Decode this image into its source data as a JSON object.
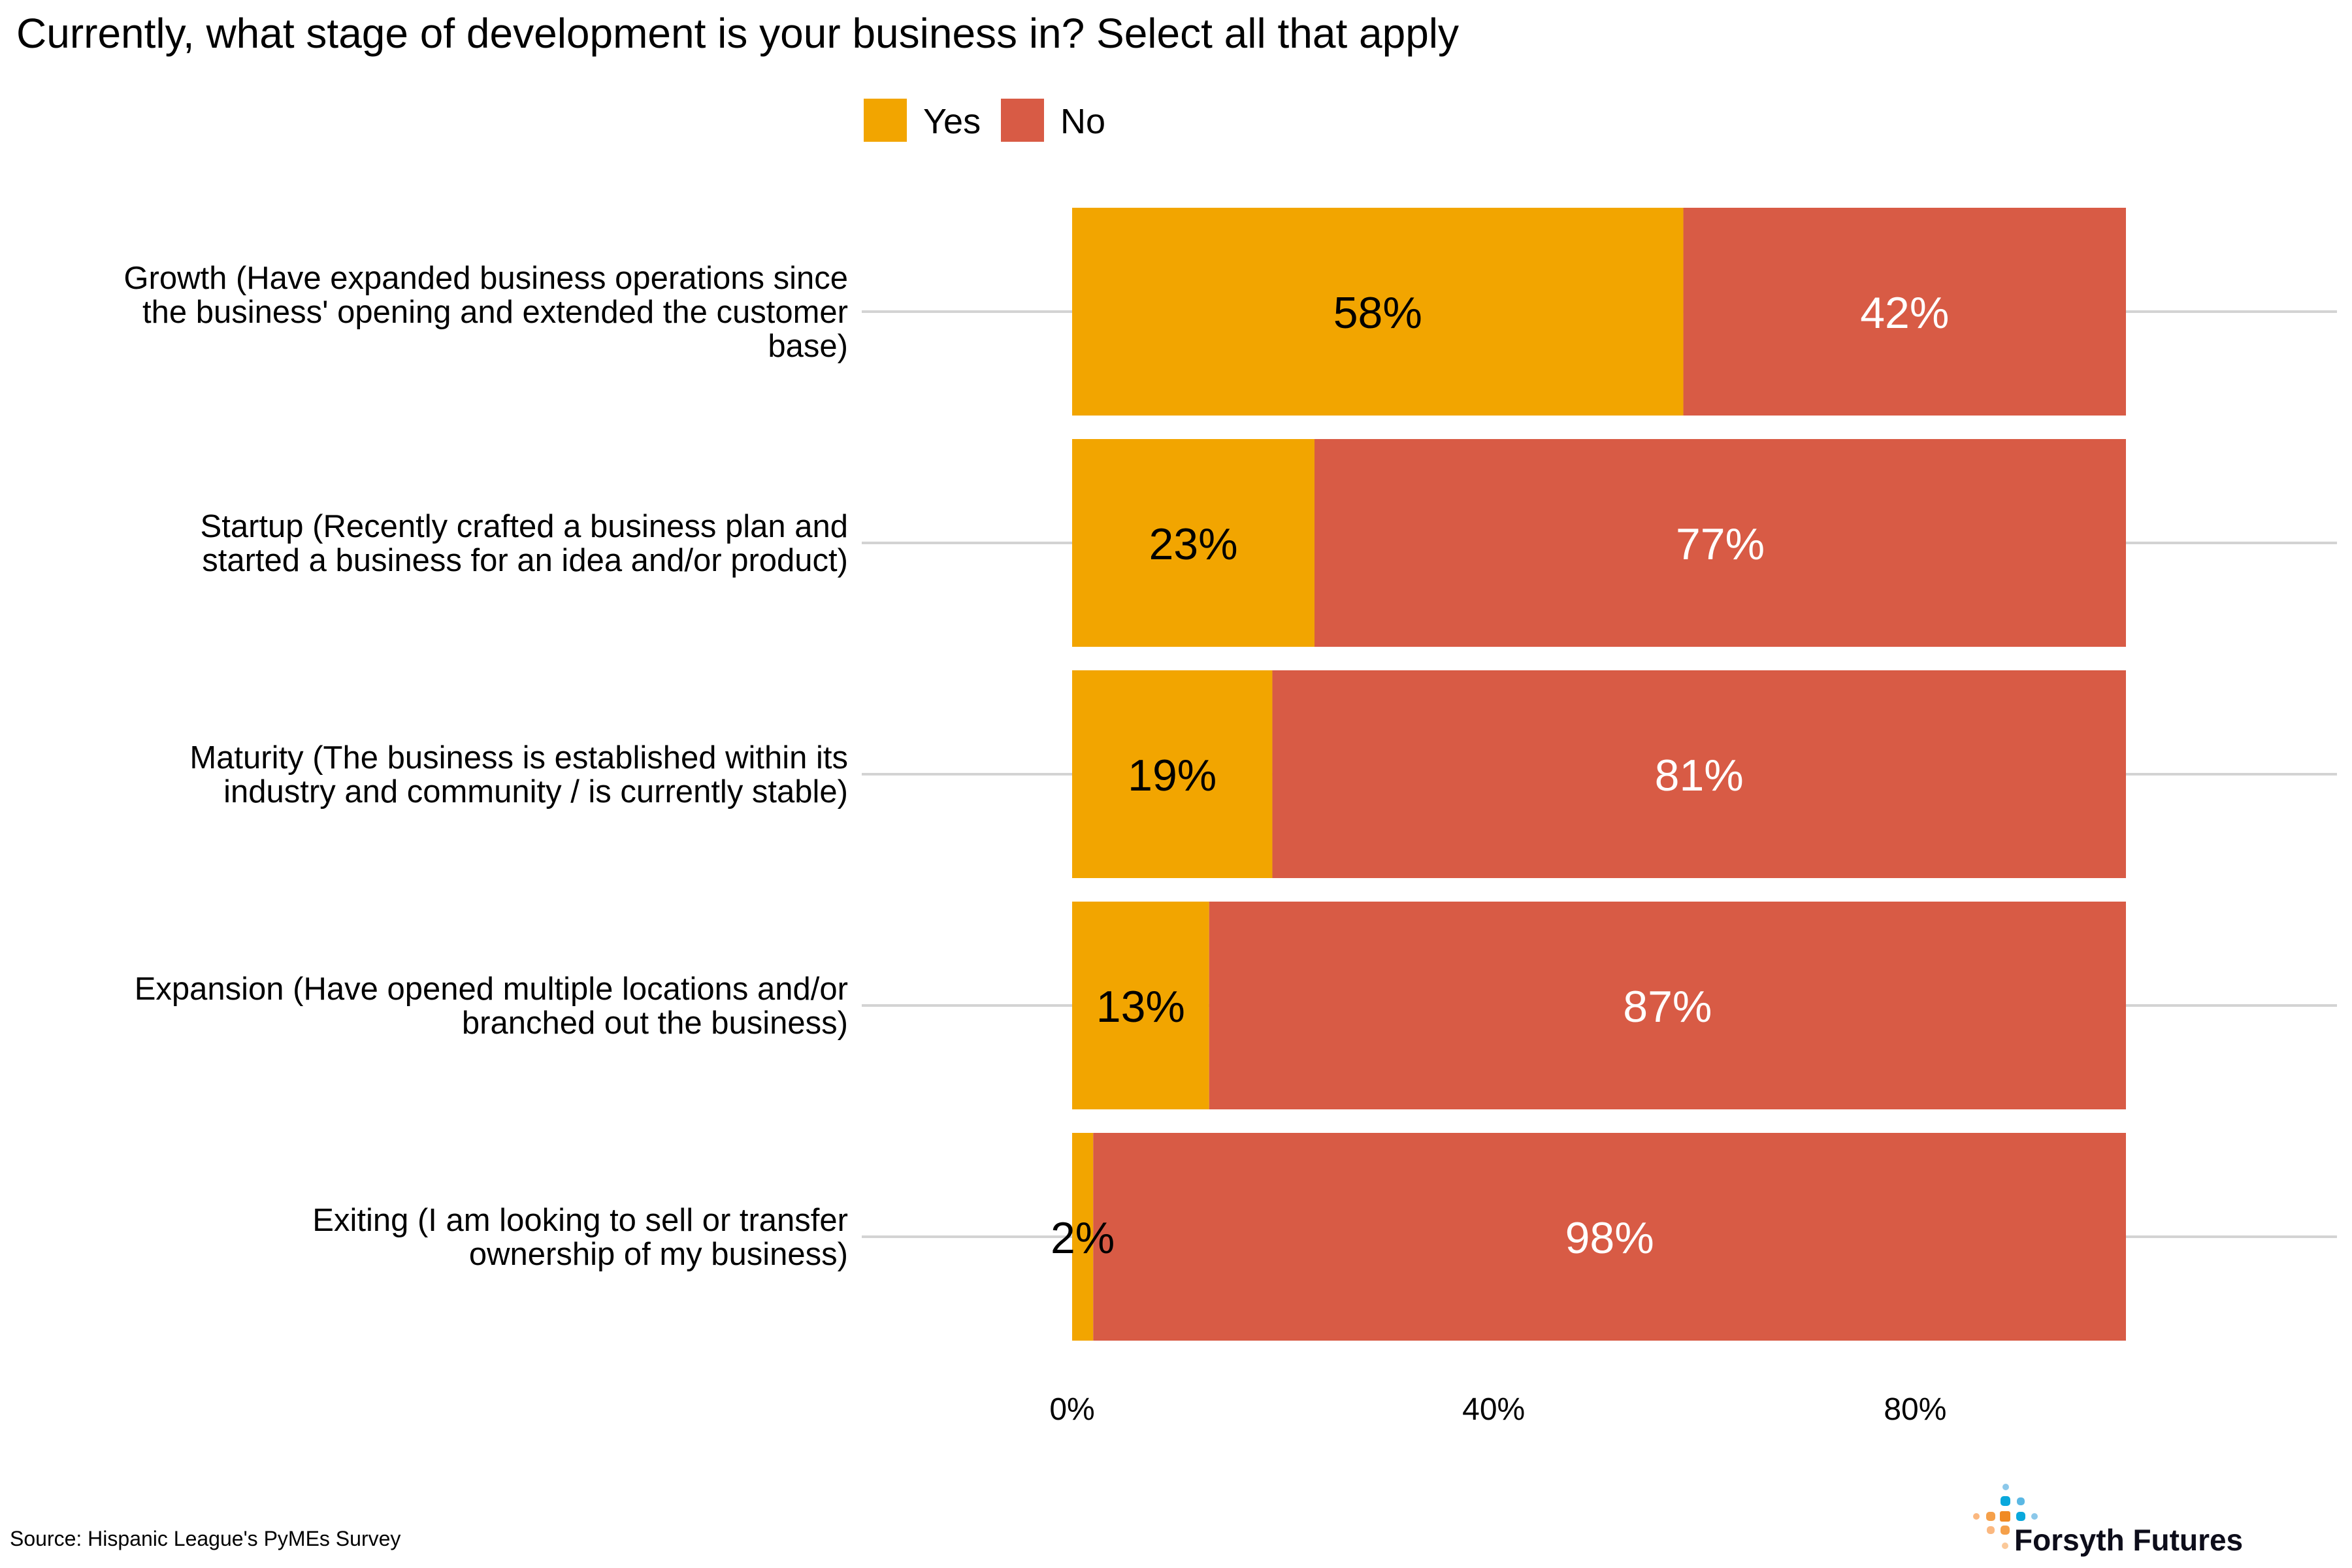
{
  "chart_data": {
    "type": "bar",
    "orientation": "horizontal",
    "stacked": true,
    "title": "Currently, what stage of development is your business in? Select all that apply",
    "categories": [
      [
        "Growth (Have expanded business operations since",
        "the business' opening and extended the customer",
        "base)"
      ],
      [
        "Startup (Recently crafted a business plan and",
        "started a business for an idea and/or product)"
      ],
      [
        "Maturity (The business is established within its",
        "industry and community / is currently stable)"
      ],
      [
        "Expansion (Have opened multiple locations and/or",
        "branched out the business)"
      ],
      [
        "Exiting (I am looking to sell or transfer",
        "ownership of my business)"
      ]
    ],
    "series": [
      {
        "name": "Yes",
        "color": "#F2A500",
        "label_color": "#000000",
        "values": [
          58,
          23,
          19,
          13,
          2
        ],
        "labels": [
          "58%",
          "23%",
          "19%",
          "13%",
          "2%"
        ]
      },
      {
        "name": "No",
        "color": "#D85B45",
        "label_color": "#FFFFFF",
        "values": [
          42,
          77,
          81,
          87,
          98
        ],
        "labels": [
          "42%",
          "77%",
          "81%",
          "87%",
          "98%"
        ]
      }
    ],
    "xlim": [
      0,
      100
    ],
    "xticks": [
      0,
      40,
      80
    ],
    "xtick_labels": [
      "0%",
      "40%",
      "80%"
    ],
    "xlabel": "",
    "ylabel": "",
    "grid": "horizontal gridlines at each category",
    "legend": {
      "position": "top",
      "entries": [
        "Yes",
        "No"
      ]
    }
  },
  "footer": {
    "source": "Source: Hispanic League's PyMEs Survey",
    "logo_text": "Forsyth Futures"
  }
}
